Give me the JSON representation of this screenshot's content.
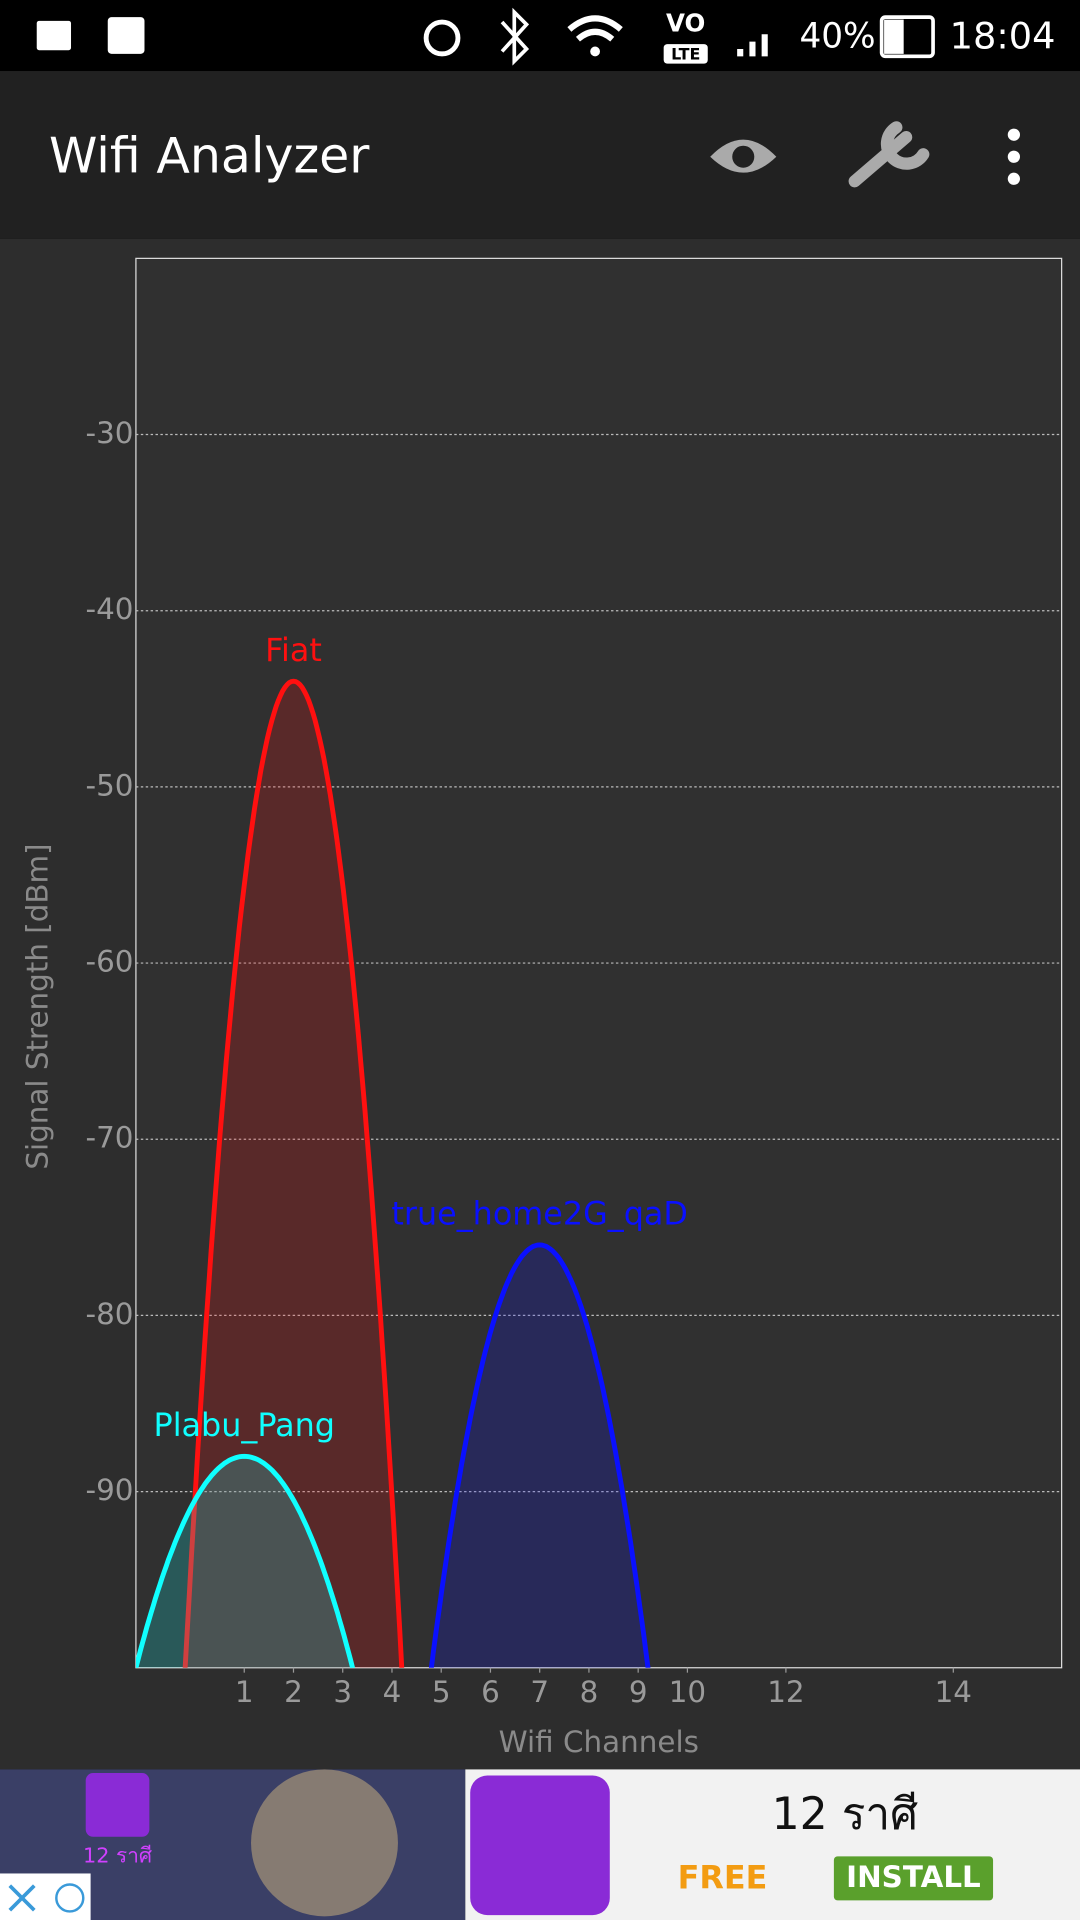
{
  "status_bar": {
    "network": "VO",
    "network_sub": "LTE",
    "battery": "40%",
    "time": "18:04"
  },
  "app_bar": {
    "title": "Wifi Analyzer"
  },
  "chart_data": {
    "type": "area",
    "ylabel": "Signal Strength [dBm]",
    "xlabel": "Wifi Channels",
    "xlim": [
      2401,
      2495
    ],
    "xticks": [
      {
        "value": 2412,
        "label": "1"
      },
      {
        "value": 2417,
        "label": "2"
      },
      {
        "value": 2422,
        "label": "3"
      },
      {
        "value": 2427,
        "label": "4"
      },
      {
        "value": 2432,
        "label": "5"
      },
      {
        "value": 2437,
        "label": "6"
      },
      {
        "value": 2442,
        "label": "7"
      },
      {
        "value": 2447,
        "label": "8"
      },
      {
        "value": 2452,
        "label": "9"
      },
      {
        "value": 2457,
        "label": "10"
      },
      {
        "value": 2467,
        "label": "12"
      },
      {
        "value": 2484,
        "label": "14"
      }
    ],
    "ylim": [
      -100,
      -20
    ],
    "yticks": [
      -90,
      -80,
      -70,
      -60,
      -50,
      -40,
      -30
    ],
    "grid": true,
    "channel_width": 22,
    "series": [
      {
        "name": "Fiat",
        "color": "#ff1010",
        "x": 2417,
        "value": -44
      },
      {
        "name": "true_home2G_qaD",
        "color": "#0a10ff",
        "x": 2442,
        "value": -76
      },
      {
        "name": "Plabu_Pang",
        "color": "#10ffff",
        "x": 2412,
        "value": -88
      }
    ]
  },
  "ad": {
    "icon_label": "12 ราศี",
    "title": "12 ราศี",
    "price": "FREE",
    "button": "INSTALL"
  }
}
